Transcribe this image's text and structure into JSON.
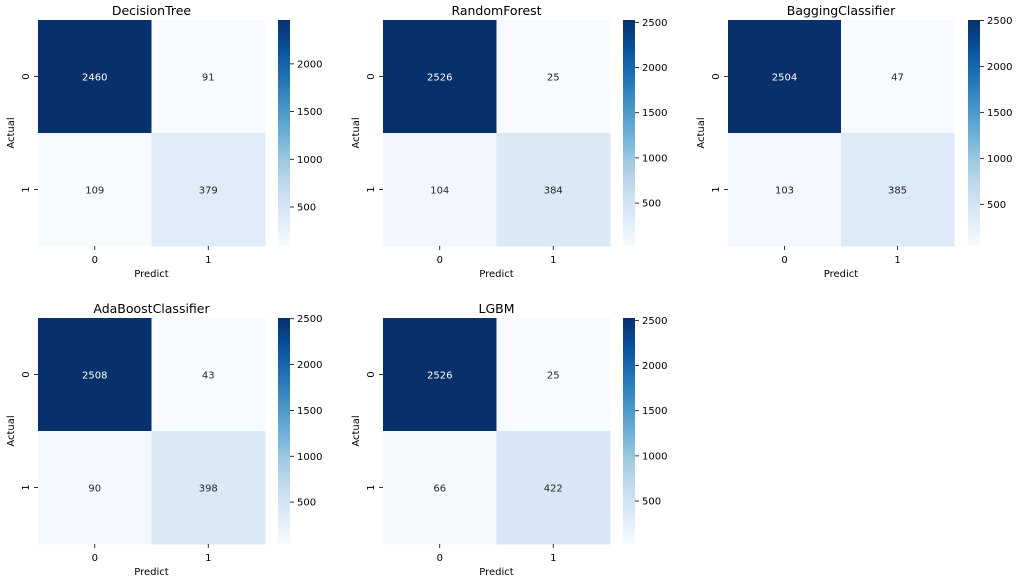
{
  "chart_data": [
    {
      "type": "heatmap",
      "title": "DecisionTree",
      "xlabel": "Predict",
      "ylabel": "Actual",
      "x_tick_labels": [
        "0",
        "1"
      ],
      "y_tick_labels": [
        "0",
        "1"
      ],
      "values": [
        [
          2460,
          91
        ],
        [
          109,
          379
        ]
      ],
      "colorbar_ticks": [
        "500",
        "1000",
        "1500",
        "2000"
      ],
      "colorbar_range": [
        91,
        2460
      ],
      "colormap": "Blues"
    },
    {
      "type": "heatmap",
      "title": "RandomForest",
      "xlabel": "Predict",
      "ylabel": "Actual",
      "x_tick_labels": [
        "0",
        "1"
      ],
      "y_tick_labels": [
        "0",
        "1"
      ],
      "values": [
        [
          2526,
          25
        ],
        [
          104,
          384
        ]
      ],
      "colorbar_ticks": [
        "500",
        "1000",
        "1500",
        "2000",
        "2500"
      ],
      "colorbar_range": [
        25,
        2526
      ],
      "colormap": "Blues"
    },
    {
      "type": "heatmap",
      "title": "BaggingClassifier",
      "xlabel": "Predict",
      "ylabel": "Actual",
      "x_tick_labels": [
        "0",
        "1"
      ],
      "y_tick_labels": [
        "0",
        "1"
      ],
      "values": [
        [
          2504,
          47
        ],
        [
          103,
          385
        ]
      ],
      "colorbar_ticks": [
        "500",
        "1000",
        "1500",
        "2000",
        "2500"
      ],
      "colorbar_range": [
        47,
        2504
      ],
      "colormap": "Blues"
    },
    {
      "type": "heatmap",
      "title": "AdaBoostClassifier",
      "xlabel": "Predict",
      "ylabel": "Actual",
      "x_tick_labels": [
        "0",
        "1"
      ],
      "y_tick_labels": [
        "0",
        "1"
      ],
      "values": [
        [
          2508,
          43
        ],
        [
          90,
          398
        ]
      ],
      "colorbar_ticks": [
        "500",
        "1000",
        "1500",
        "2000",
        "2500"
      ],
      "colorbar_range": [
        43,
        2508
      ],
      "colormap": "Blues"
    },
    {
      "type": "heatmap",
      "title": "LGBM",
      "xlabel": "Predict",
      "ylabel": "Actual",
      "x_tick_labels": [
        "0",
        "1"
      ],
      "y_tick_labels": [
        "0",
        "1"
      ],
      "values": [
        [
          2526,
          25
        ],
        [
          66,
          422
        ]
      ],
      "colorbar_ticks": [
        "500",
        "1000",
        "1500",
        "2000",
        "2500"
      ],
      "colorbar_range": [
        25,
        2526
      ],
      "colormap": "Blues"
    }
  ]
}
